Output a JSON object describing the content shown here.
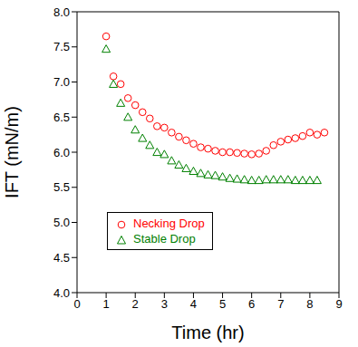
{
  "chart_data": {
    "type": "scatter",
    "x_label": "Time (hr)",
    "y_label": "IFT (mN/m)",
    "xlim": [
      0,
      9
    ],
    "xticks": [
      0,
      1,
      2,
      3,
      4,
      5,
      6,
      7,
      8,
      9
    ],
    "ylim": [
      4.0,
      8.0
    ],
    "yticks": [
      {
        "value": 4.0,
        "label": "4.0"
      },
      4.5,
      {
        "value": 5.0,
        "label": "5.0"
      },
      5.5,
      {
        "value": 6.0,
        "label": "6.0"
      },
      6.5,
      {
        "value": 7.0,
        "label": "7.0"
      },
      7.5,
      {
        "value": 8.0,
        "label": "8.0"
      }
    ],
    "legend": "lower left",
    "series": [
      {
        "name": "Necking Drop",
        "color": "#ff0000",
        "marker": "circle",
        "x": [
          1.0,
          1.25,
          1.5,
          1.75,
          2.0,
          2.25,
          2.5,
          2.75,
          3.0,
          3.25,
          3.5,
          3.75,
          4.0,
          4.25,
          4.5,
          4.75,
          5.0,
          5.25,
          5.5,
          5.75,
          6.0,
          6.25,
          6.5,
          6.75,
          7.0,
          7.25,
          7.5,
          7.75,
          8.0,
          8.25,
          8.5
        ],
        "values": [
          7.65,
          7.08,
          6.97,
          6.77,
          6.67,
          6.57,
          6.48,
          6.37,
          6.35,
          6.28,
          6.22,
          6.17,
          6.12,
          6.07,
          6.05,
          6.02,
          6.0,
          6.0,
          5.99,
          5.98,
          5.97,
          5.98,
          6.02,
          6.1,
          6.15,
          6.18,
          6.2,
          6.23,
          6.28,
          6.25,
          6.28
        ]
      },
      {
        "name": "Stable Drop",
        "color": "#008000",
        "marker": "triangle",
        "x": [
          1.0,
          1.25,
          1.5,
          1.75,
          2.0,
          2.25,
          2.5,
          2.75,
          3.0,
          3.25,
          3.5,
          3.75,
          4.0,
          4.25,
          4.5,
          4.75,
          5.0,
          5.25,
          5.5,
          5.75,
          6.0,
          6.25,
          6.5,
          6.75,
          7.0,
          7.25,
          7.5,
          7.75,
          8.0,
          8.25
        ],
        "values": [
          7.47,
          6.97,
          6.7,
          6.5,
          6.32,
          6.2,
          6.1,
          6.0,
          5.97,
          5.88,
          5.82,
          5.77,
          5.73,
          5.7,
          5.68,
          5.67,
          5.65,
          5.63,
          5.62,
          5.61,
          5.6,
          5.6,
          5.61,
          5.61,
          5.61,
          5.61,
          5.6,
          5.6,
          5.6,
          5.6
        ]
      }
    ]
  }
}
